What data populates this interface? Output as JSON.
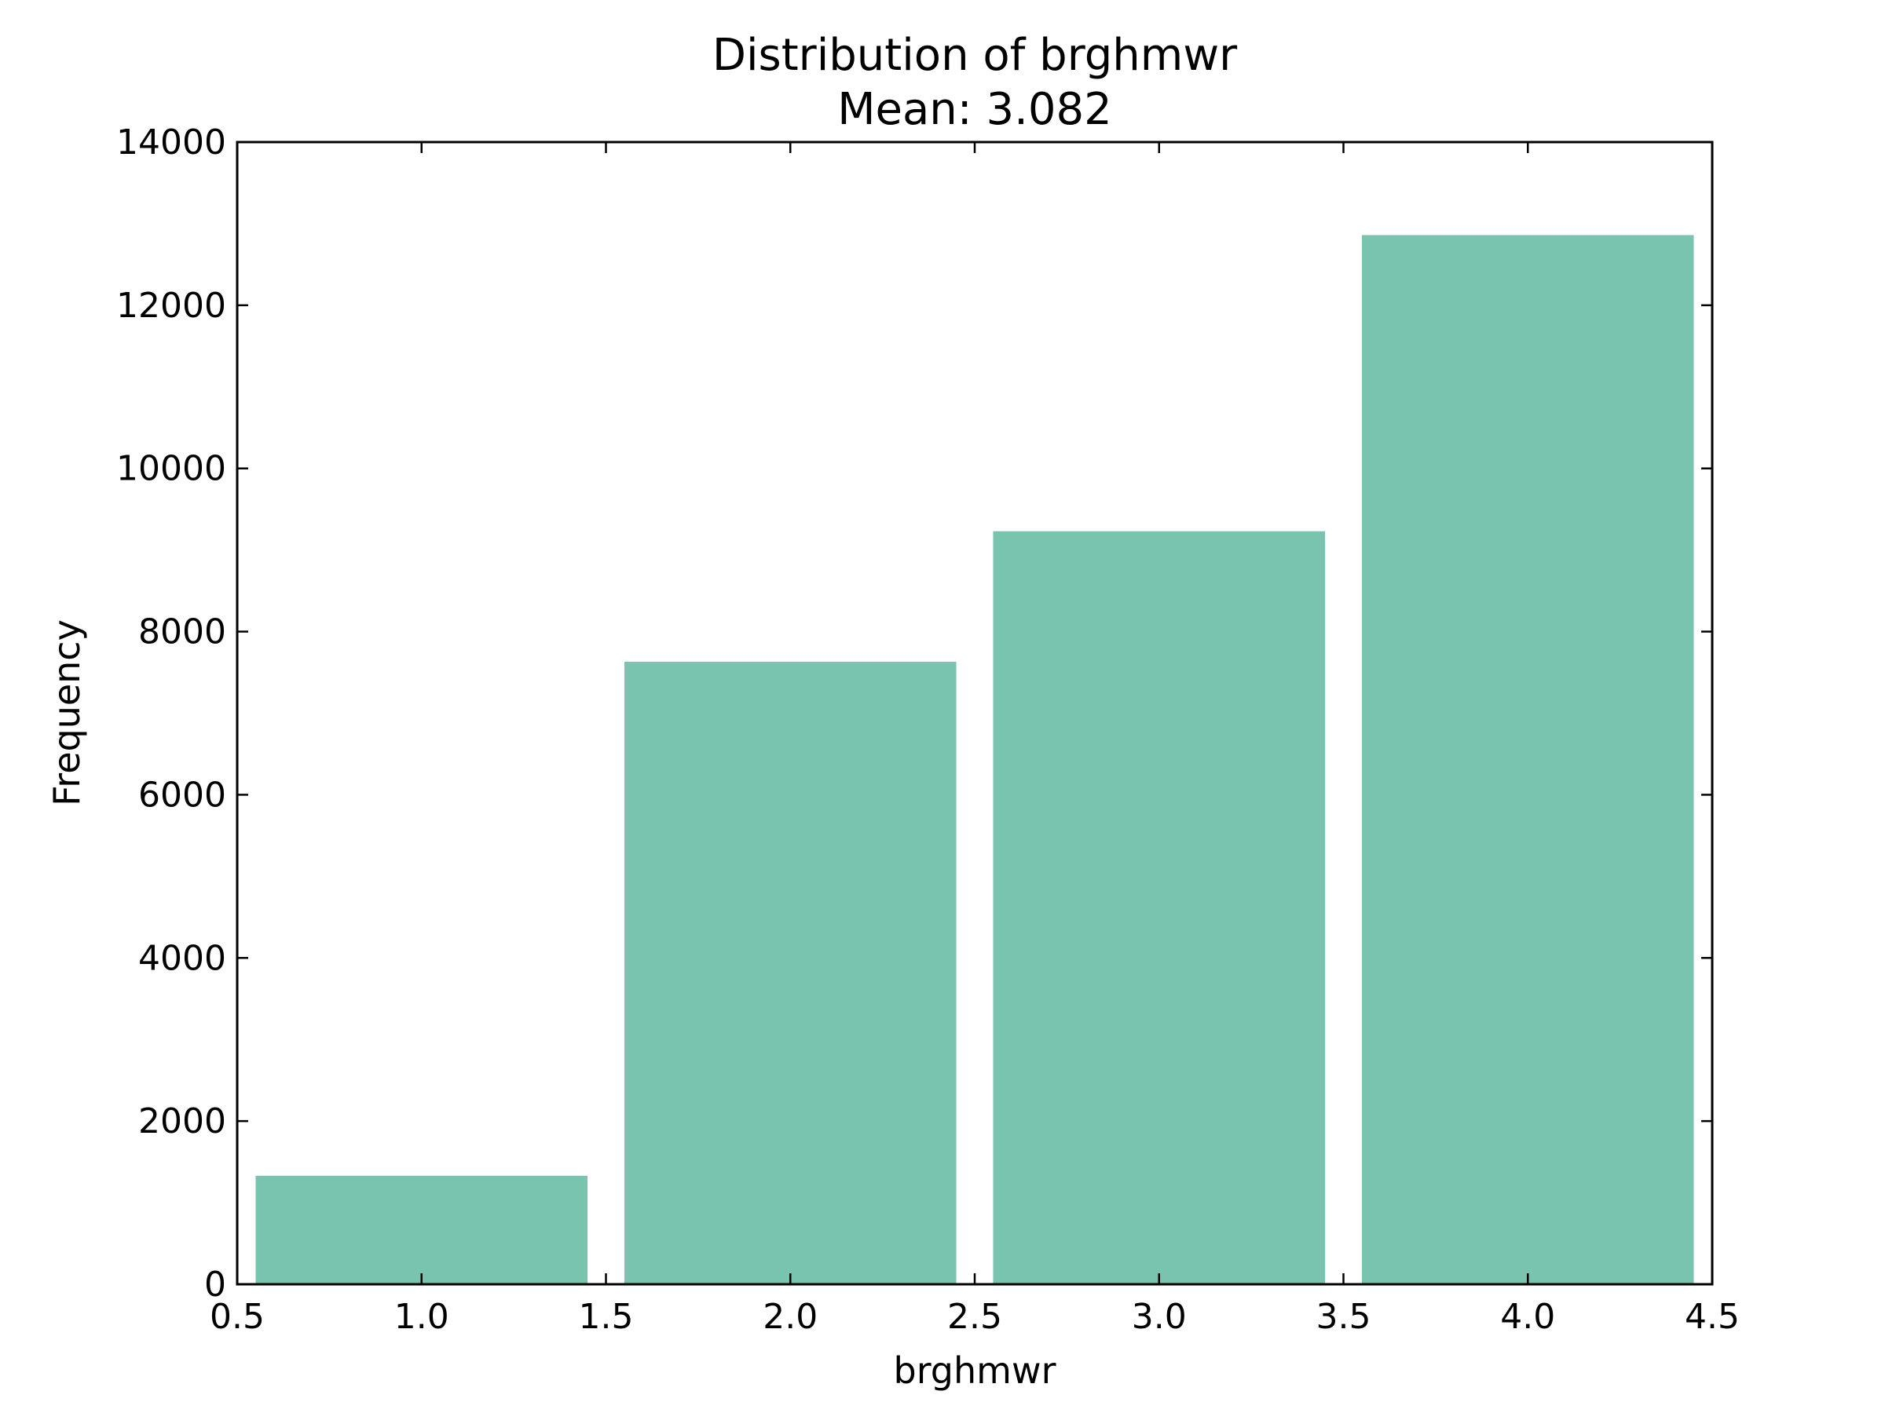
{
  "chart_data": {
    "type": "bar",
    "title": "Distribution of brghmwr",
    "subtitle": "Mean: 3.082",
    "xlabel": "brghmwr",
    "ylabel": "Frequency",
    "xlim": [
      0.5,
      4.5
    ],
    "ylim": [
      0,
      14000
    ],
    "xticks": [
      0.5,
      1.0,
      1.5,
      2.0,
      2.5,
      3.0,
      3.5,
      4.0,
      4.5
    ],
    "xtick_labels": [
      "0.5",
      "1.0",
      "1.5",
      "2.0",
      "2.5",
      "3.0",
      "3.5",
      "4.0",
      "4.5"
    ],
    "yticks": [
      0,
      2000,
      4000,
      6000,
      8000,
      10000,
      12000,
      14000
    ],
    "ytick_labels": [
      "0",
      "2000",
      "4000",
      "6000",
      "8000",
      "10000",
      "12000",
      "14000"
    ],
    "bars": [
      {
        "x0": 0.55,
        "x1": 1.45,
        "value": 1330
      },
      {
        "x0": 1.55,
        "x1": 2.45,
        "value": 7630
      },
      {
        "x0": 2.55,
        "x1": 3.45,
        "value": 9230
      },
      {
        "x0": 3.55,
        "x1": 4.45,
        "value": 12860
      }
    ],
    "bar_color": "#78c4ae",
    "grid": false,
    "legend": "none"
  }
}
